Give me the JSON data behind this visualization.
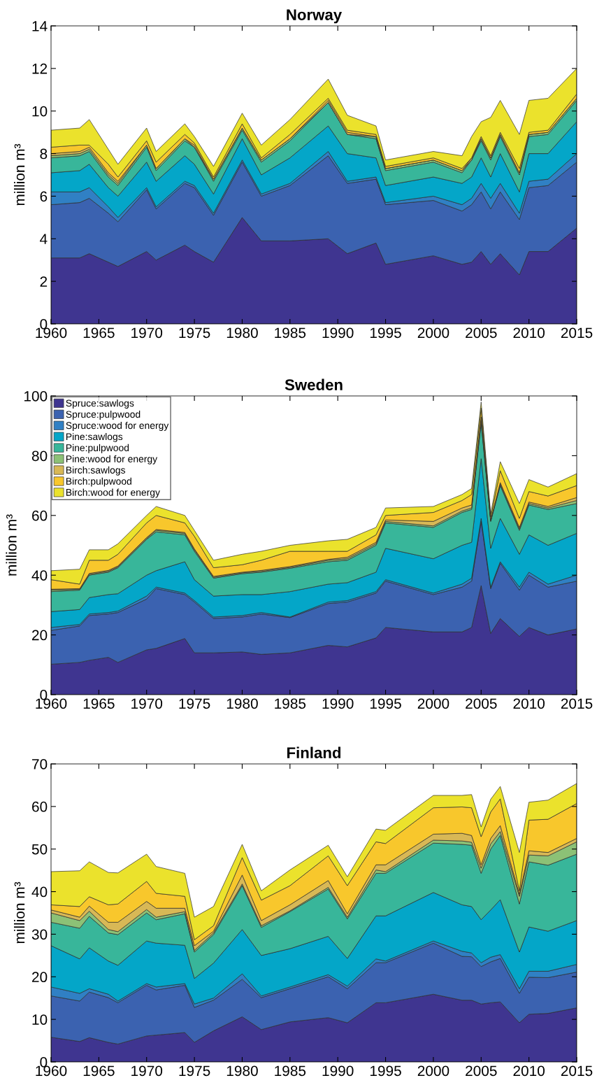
{
  "chart_data": [
    {
      "type": "area",
      "title": "Norway",
      "ylabel": "million m³",
      "stacked": true,
      "xlim": [
        1960,
        2015
      ],
      "xticks": [
        1960,
        1965,
        1970,
        1975,
        1980,
        1985,
        1990,
        1995,
        2000,
        2005,
        2010,
        2015
      ],
      "ylim": [
        0,
        14
      ],
      "yticks": [
        0,
        2,
        4,
        6,
        8,
        10,
        12,
        14
      ],
      "grid": false,
      "legend": false,
      "x": [
        1960,
        1963,
        1964,
        1966,
        1967,
        1970,
        1971,
        1974,
        1975,
        1977,
        1980,
        1982,
        1985,
        1989,
        1991,
        1994,
        1995,
        2000,
        2003,
        2004,
        2005,
        2006,
        2007,
        2009,
        2010,
        2012,
        2015
      ],
      "series": [
        {
          "color": "#3f3590",
          "values": [
            3.1,
            3.1,
            3.3,
            2.9,
            2.7,
            3.4,
            3.0,
            3.7,
            3.4,
            2.9,
            5.0,
            3.9,
            3.9,
            4.0,
            3.3,
            3.8,
            2.8,
            3.2,
            2.8,
            2.9,
            3.4,
            2.8,
            3.3,
            2.3,
            3.4,
            3.4,
            4.5
          ]
        },
        {
          "color": "#3b62b0",
          "values": [
            2.5,
            2.6,
            2.6,
            2.3,
            2.1,
            2.9,
            2.4,
            2.9,
            3.0,
            2.2,
            2.6,
            2.1,
            2.6,
            3.9,
            3.3,
            3.0,
            2.8,
            2.6,
            2.5,
            2.7,
            2.8,
            2.6,
            2.9,
            2.6,
            3.0,
            3.1,
            3.1
          ]
        },
        {
          "color": "#3080c4",
          "values": [
            0.6,
            0.5,
            0.5,
            0.3,
            0.2,
            0.1,
            0.1,
            0.1,
            0.1,
            0.1,
            0.1,
            0.1,
            0.1,
            0.2,
            0.1,
            0.1,
            0.1,
            0.2,
            0.3,
            0.3,
            0.4,
            0.5,
            0.4,
            0.3,
            0.3,
            0.3,
            0.4
          ]
        },
        {
          "color": "#04a6c8",
          "values": [
            0.9,
            1.0,
            1.1,
            0.9,
            1.0,
            1.2,
            1.2,
            1.2,
            1.0,
            0.9,
            1.0,
            0.9,
            1.2,
            1.2,
            1.3,
            0.9,
            0.8,
            0.9,
            1.0,
            1.0,
            1.2,
            1.0,
            1.4,
            1.0,
            1.3,
            1.2,
            1.5
          ]
        },
        {
          "color": "#38b69a",
          "values": [
            0.7,
            0.7,
            0.6,
            0.5,
            0.5,
            0.7,
            0.5,
            0.7,
            0.8,
            0.6,
            0.4,
            0.6,
            0.8,
            1.1,
            0.9,
            0.9,
            0.7,
            0.7,
            0.5,
            0.8,
            0.8,
            0.8,
            0.8,
            0.8,
            0.8,
            0.9,
            1.0
          ]
        },
        {
          "color": "#8cc176",
          "values": [
            0.1,
            0.1,
            0.1,
            0.1,
            0.1,
            0.1,
            0.1,
            0.1,
            0.0,
            0.1,
            0.1,
            0.1,
            0.1,
            0.0,
            0.0,
            0.1,
            0.1,
            0.1,
            0.1,
            0.0,
            0.1,
            0.1,
            0.1,
            0.1,
            0.1,
            0.1,
            0.1
          ]
        },
        {
          "color": "#d8b856",
          "values": [
            0.1,
            0.1,
            0.1,
            0.1,
            0.1,
            0.0,
            0.0,
            0.0,
            0.1,
            0.0,
            0.0,
            0.0,
            0.0,
            0.1,
            0.1,
            0.0,
            0.0,
            0.0,
            0.0,
            0.1,
            0.0,
            0.0,
            0.0,
            0.0,
            0.0,
            0.0,
            0.0
          ]
        },
        {
          "color": "#f8c72c",
          "values": [
            0.3,
            0.3,
            0.1,
            0.4,
            0.2,
            0.2,
            0.3,
            0.2,
            0.1,
            0.1,
            0.2,
            0.1,
            0.2,
            0.1,
            0.1,
            0.1,
            0.1,
            0.1,
            0.1,
            0.0,
            0.1,
            0.1,
            0.1,
            0.2,
            0.1,
            0.1,
            0.2
          ]
        },
        {
          "color": "#ebe22c",
          "values": [
            0.8,
            0.8,
            1.2,
            0.7,
            0.6,
            0.6,
            0.5,
            0.5,
            0.3,
            0.5,
            0.5,
            0.6,
            0.7,
            0.9,
            0.7,
            0.4,
            0.3,
            0.3,
            0.6,
            1.0,
            0.7,
            1.8,
            1.5,
            1.6,
            1.5,
            1.5,
            1.2
          ]
        }
      ]
    },
    {
      "type": "area",
      "title": "Sweden",
      "ylabel": "million m³",
      "stacked": true,
      "xlim": [
        1960,
        2015
      ],
      "xticks": [
        1960,
        1965,
        1970,
        1975,
        1980,
        1985,
        1990,
        1995,
        2000,
        2005,
        2010,
        2015
      ],
      "ylim": [
        0,
        100
      ],
      "yticks": [
        0,
        20,
        40,
        60,
        80,
        100
      ],
      "grid": false,
      "legend": "top left",
      "x": [
        1960,
        1963,
        1964,
        1966,
        1967,
        1970,
        1971,
        1974,
        1975,
        1977,
        1980,
        1982,
        1985,
        1989,
        1991,
        1994,
        1995,
        2000,
        2003,
        2004,
        2005,
        2006,
        2007,
        2009,
        2010,
        2012,
        2015
      ],
      "series": [
        {
          "name": "Spruce:sawlogs",
          "color": "#3f3590",
          "values": [
            10.2,
            10.8,
            11.5,
            12.5,
            10.8,
            15.0,
            15.5,
            18.8,
            14.0,
            14.0,
            14.3,
            13.5,
            14.0,
            16.5,
            16.0,
            19.0,
            22.5,
            21.0,
            21.0,
            22.5,
            36.5,
            20.5,
            25.5,
            19.5,
            22.5,
            20.0,
            22.0
          ]
        },
        {
          "name": "Spruce:pulpwood",
          "color": "#3b62b0",
          "values": [
            11.3,
            12.2,
            15.0,
            14.5,
            16.7,
            17.0,
            20.0,
            14.7,
            17.0,
            11.5,
            11.7,
            13.5,
            11.8,
            14.0,
            15.0,
            15.0,
            15.5,
            12.5,
            15.0,
            15.5,
            21.5,
            15.0,
            18.5,
            15.5,
            17.5,
            16.0,
            16.0
          ]
        },
        {
          "name": "Spruce:wood for energy",
          "color": "#3080c4",
          "values": [
            1.0,
            0.5,
            0.5,
            0.5,
            0.5,
            1.0,
            0.5,
            0.5,
            0.5,
            0.5,
            0.5,
            0.5,
            0.2,
            0.5,
            0.5,
            0.5,
            0.5,
            0.5,
            1.0,
            1.0,
            1.0,
            0.5,
            0.5,
            1.0,
            1.0,
            1.0,
            2.0
          ]
        },
        {
          "name": "Pine:sawlogs",
          "color": "#04a6c8",
          "values": [
            5.3,
            5.0,
            5.5,
            6.0,
            5.8,
            7.0,
            5.5,
            10.5,
            7.0,
            7.0,
            7.0,
            6.0,
            8.5,
            6.0,
            6.0,
            6.5,
            10.5,
            11.5,
            13.0,
            12.0,
            20.0,
            13.0,
            14.5,
            11.0,
            12.5,
            13.0,
            14.0
          ]
        },
        {
          "name": "Pine:pulpwood",
          "color": "#38b69a",
          "values": [
            6.7,
            6.5,
            7.5,
            7.5,
            8.7,
            12.0,
            13.0,
            9.0,
            9.5,
            6.0,
            7.0,
            7.5,
            7.8,
            7.5,
            7.5,
            9.0,
            8.5,
            10.5,
            11.0,
            11.0,
            12.0,
            9.0,
            11.0,
            8.0,
            10.0,
            12.0,
            10.0
          ]
        },
        {
          "name": "Pine:wood for energy",
          "color": "#8cc176",
          "values": [
            0.5,
            0.3,
            0.3,
            0.3,
            0.3,
            0.3,
            0.5,
            0.5,
            0.5,
            0.3,
            0.3,
            0.3,
            0.3,
            0.5,
            0.5,
            0.5,
            0.5,
            0.5,
            0.5,
            0.5,
            1.0,
            0.3,
            0.5,
            0.5,
            0.5,
            0.5,
            1.0
          ]
        },
        {
          "name": "Birch:sawlogs",
          "color": "#d8b856",
          "values": [
            0.3,
            0.2,
            0.3,
            0.3,
            0.3,
            0.3,
            0.3,
            0.3,
            0.3,
            0.3,
            0.2,
            0.3,
            0.3,
            0.3,
            0.5,
            0.5,
            0.5,
            1.5,
            1.0,
            1.0,
            1.0,
            0.3,
            0.5,
            0.5,
            0.5,
            0.5,
            1.0
          ]
        },
        {
          "name": "Birch:pulpwood",
          "color": "#f8c72c",
          "values": [
            3.2,
            1.5,
            4.4,
            3.4,
            3.9,
            4.9,
            4.7,
            3.2,
            4.2,
            2.9,
            2.5,
            3.4,
            5.1,
            2.7,
            2.0,
            2.5,
            1.5,
            3.0,
            2.5,
            3.5,
            3.0,
            0.9,
            4.0,
            3.0,
            3.5,
            3.5,
            4.0
          ]
        },
        {
          "name": "Birch:wood for energy",
          "color": "#ebe22c",
          "values": [
            3.0,
            5.0,
            3.5,
            3.5,
            3.5,
            2.5,
            3.0,
            2.5,
            2.0,
            2.5,
            3.5,
            3.0,
            2.0,
            3.5,
            4.0,
            2.5,
            2.5,
            2.0,
            2.0,
            2.0,
            2.0,
            1.0,
            3.0,
            5.0,
            4.0,
            3.0,
            4.0
          ]
        }
      ]
    },
    {
      "type": "area",
      "title": "Finland",
      "ylabel": "million m³",
      "stacked": true,
      "xlim": [
        1960,
        2015
      ],
      "xticks": [
        1960,
        1965,
        1970,
        1975,
        1980,
        1985,
        1990,
        1995,
        2000,
        2005,
        2010,
        2015
      ],
      "ylim": [
        0,
        70
      ],
      "yticks": [
        0,
        10,
        20,
        30,
        40,
        50,
        60,
        70
      ],
      "grid": false,
      "legend": false,
      "x": [
        1960,
        1963,
        1964,
        1966,
        1967,
        1970,
        1971,
        1974,
        1975,
        1977,
        1980,
        1982,
        1985,
        1989,
        1991,
        1994,
        1995,
        2000,
        2003,
        2004,
        2005,
        2006,
        2007,
        2009,
        2010,
        2012,
        2015
      ],
      "series": [
        {
          "color": "#3f3590",
          "values": [
            5.8,
            4.8,
            5.7,
            4.6,
            4.2,
            6.1,
            6.3,
            6.9,
            4.6,
            7.3,
            10.6,
            7.6,
            9.4,
            10.4,
            9.2,
            13.9,
            13.9,
            15.9,
            14.5,
            14.5,
            13.6,
            13.9,
            14.1,
            9.2,
            11.2,
            11.4,
            12.7
          ]
        },
        {
          "color": "#3b62b0",
          "values": [
            9.7,
            9.5,
            10.7,
            10.5,
            9.7,
            11.9,
            10.6,
            11.1,
            8.2,
            7.2,
            8.8,
            7.5,
            7.8,
            9.6,
            8.0,
            9.4,
            9.4,
            12.0,
            10.3,
            10.2,
            8.8,
            9.6,
            10.2,
            6.9,
            8.7,
            8.4,
            8.4
          ]
        },
        {
          "color": "#3080c4",
          "values": [
            2.1,
            1.8,
            0.8,
            0.8,
            0.4,
            0.4,
            0.7,
            0.4,
            0.8,
            0.5,
            1.3,
            0.4,
            0.4,
            0.5,
            0.6,
            0.9,
            0.4,
            0.5,
            1.2,
            0.9,
            0.9,
            1.1,
            0.9,
            1.1,
            1.4,
            1.5,
            1.8
          ]
        },
        {
          "color": "#04a6c8",
          "values": [
            9.7,
            8.1,
            9.6,
            7.8,
            8.4,
            10.0,
            10.3,
            9.0,
            6.0,
            8.2,
            10.4,
            9.5,
            9.0,
            9.0,
            6.5,
            10.1,
            10.6,
            11.4,
            10.9,
            10.9,
            10.1,
            11.1,
            12.9,
            8.6,
            10.4,
            9.4,
            10.3
          ]
        },
        {
          "color": "#38b69a",
          "values": [
            5.5,
            7.2,
            7.4,
            6.6,
            7.2,
            6.6,
            5.5,
            7.4,
            6.2,
            6.7,
            10.3,
            6.6,
            8.7,
            11.1,
            9.3,
            10.0,
            10.0,
            11.6,
            14.2,
            14.4,
            10.9,
            14.3,
            15.1,
            11.3,
            15.3,
            15.5,
            15.6
          ]
        },
        {
          "color": "#8cc176",
          "values": [
            2.2,
            1.8,
            1.2,
            0.8,
            0.7,
            0.8,
            0.6,
            0.5,
            0.4,
            0.4,
            0.4,
            0.4,
            0.2,
            0.4,
            0.4,
            0.8,
            0.4,
            0.7,
            0.8,
            0.7,
            1.2,
            1.2,
            0.9,
            1.8,
            1.6,
            2.2,
            2.9
          ]
        },
        {
          "color": "#d8b856",
          "values": [
            0.7,
            0.8,
            1.2,
            1.7,
            2.2,
            1.9,
            2.1,
            0.8,
            1.1,
            0.4,
            2.1,
            1.2,
            1.4,
            1.6,
            0.8,
            1.2,
            1.6,
            1.4,
            1.8,
            1.6,
            0.8,
            1.3,
            1.4,
            0.5,
            1.0,
            0.8,
            0.8
          ]
        },
        {
          "color": "#f8c72c",
          "values": [
            1.2,
            2.5,
            2.2,
            4.1,
            4.3,
            4.7,
            3.5,
            2.8,
            1.4,
            1.3,
            4.1,
            4.8,
            4.5,
            5.8,
            6.6,
            5.4,
            5.0,
            6.2,
            6.2,
            6.5,
            6.6,
            6.2,
            6.3,
            0.8,
            7.2,
            7.8,
            8.2
          ]
        },
        {
          "color": "#ebe22c",
          "values": [
            7.8,
            8.4,
            8.2,
            7.6,
            7.3,
            6.4,
            6.3,
            5.4,
            5.3,
            4.5,
            3.1,
            2.2,
            3.7,
            2.5,
            2.1,
            3.0,
            3.1,
            2.9,
            2.7,
            3.1,
            2.3,
            3.0,
            2.9,
            9.0,
            4.2,
            4.5,
            4.7
          ]
        }
      ]
    }
  ]
}
